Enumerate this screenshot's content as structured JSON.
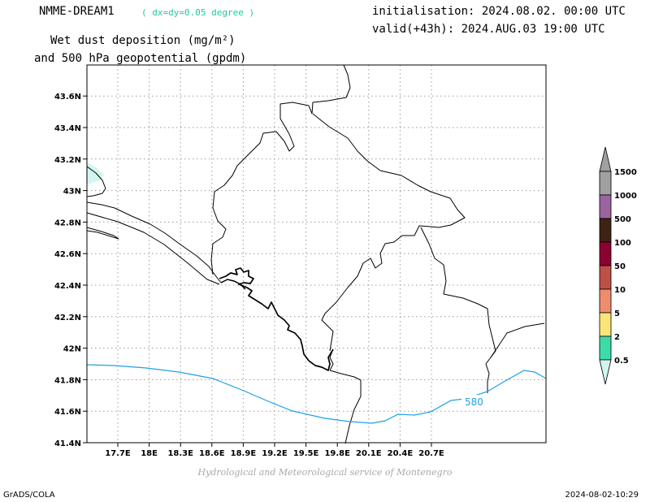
{
  "header": {
    "model": "NMME-DREAM1",
    "resolution": "( dx=dy=0.05 degree )",
    "init": "initialisation: 2024.08.02. 00:00 UTC",
    "valid": "valid(+43h): 2024.AUG.03 19:00 UTC",
    "var_line1": "Wet dust deposition (mg/m²)",
    "var_line2": "and 500 hPa geopotential (gpdm)"
  },
  "map": {
    "lon_ticks": [
      "17.7E",
      "18E",
      "18.3E",
      "18.6E",
      "18.9E",
      "19.2E",
      "19.5E",
      "19.8E",
      "20.1E",
      "20.4E",
      "20.7E"
    ],
    "lat_ticks": [
      "41.4N",
      "41.6N",
      "41.8N",
      "42N",
      "42.2N",
      "42.4N",
      "42.6N",
      "42.8N",
      "43N",
      "43.2N",
      "43.4N",
      "43.6N"
    ],
    "contour_label": "580",
    "contour_color": "#1ea0e6",
    "border_color": "#000000"
  },
  "legend": {
    "levels": [
      "0.5",
      "2",
      "5",
      "10",
      "50",
      "100",
      "500",
      "1000",
      "1500"
    ],
    "colors": [
      "#d2f5f0",
      "#3cdcaa",
      "#fae678",
      "#f08c6e",
      "#be5046",
      "#8c0032",
      "#3c2314",
      "#9b64a0",
      "#a0a0a0"
    ]
  },
  "credit": "Hydrological and Meteorological service of Montenegro",
  "footer": {
    "left": "GrADS/COLA",
    "right": "2024-08-02-10:29"
  }
}
